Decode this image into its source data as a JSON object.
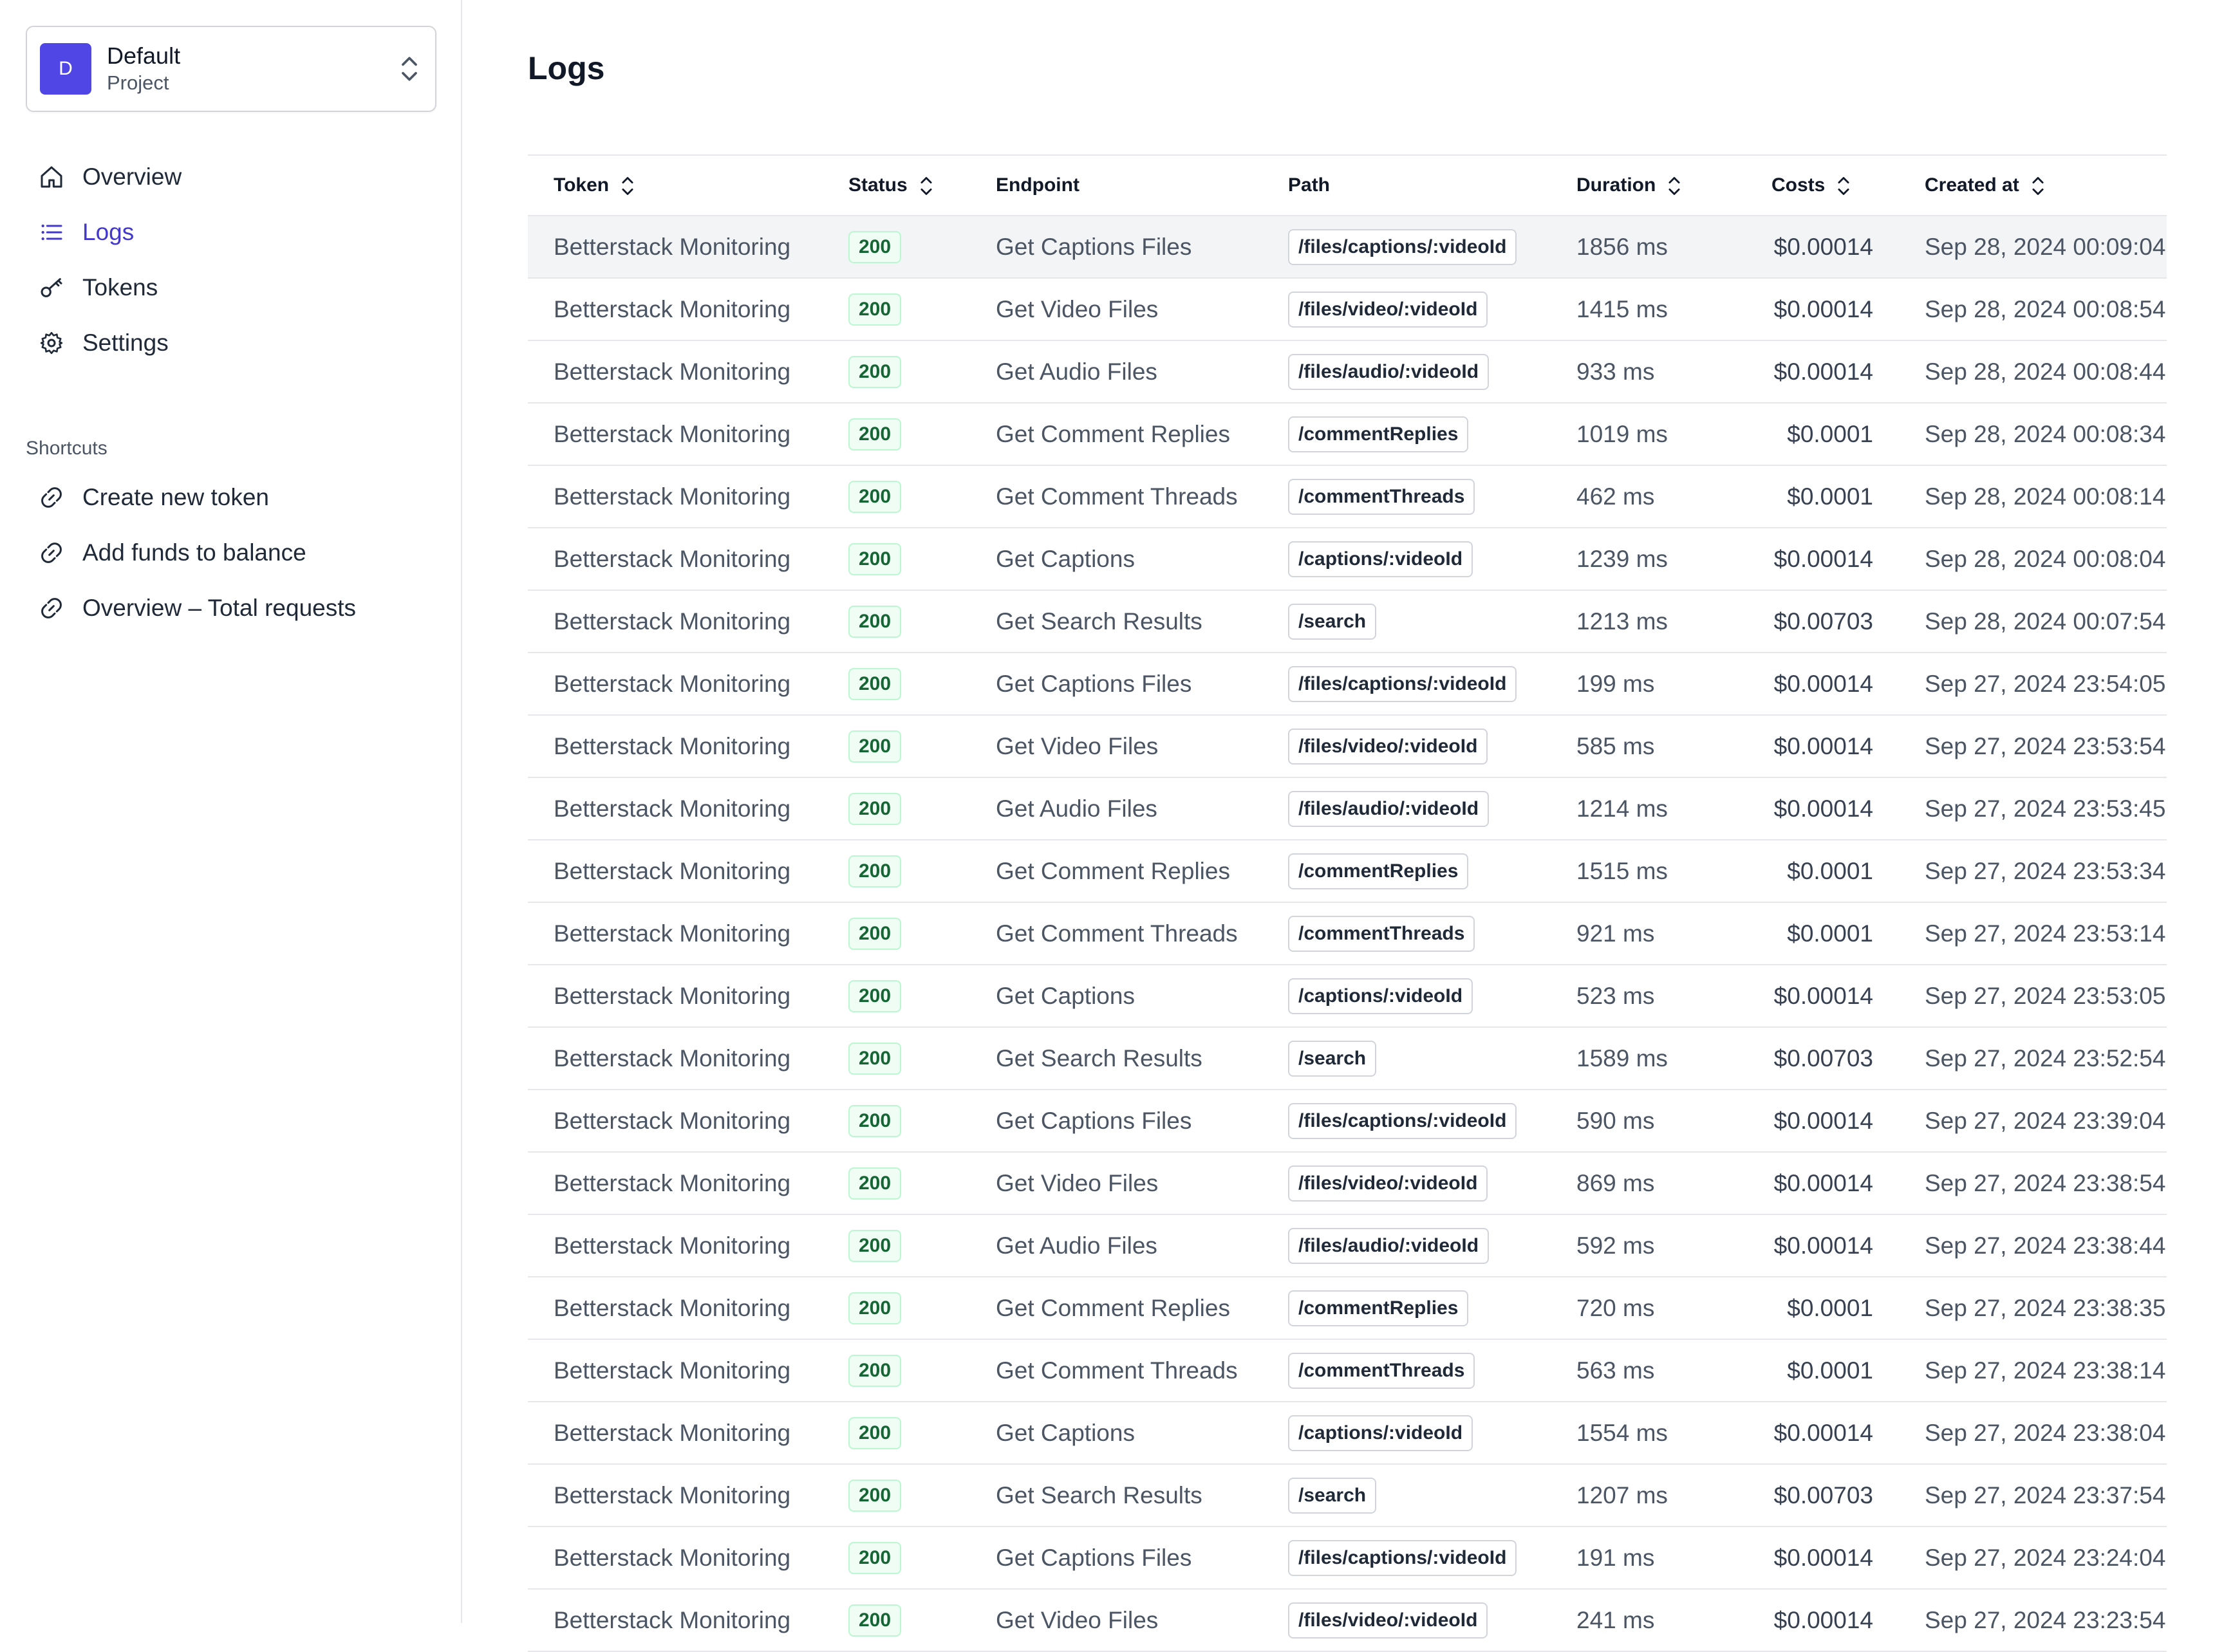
{
  "project": {
    "avatar_letter": "D",
    "name": "Default",
    "subtitle": "Project"
  },
  "nav": {
    "items": [
      {
        "label": "Overview",
        "icon": "home-icon",
        "active": false
      },
      {
        "label": "Logs",
        "icon": "list-icon",
        "active": true
      },
      {
        "label": "Tokens",
        "icon": "key-icon",
        "active": false
      },
      {
        "label": "Settings",
        "icon": "gear-icon",
        "active": false
      }
    ]
  },
  "shortcuts": {
    "title": "Shortcuts",
    "items": [
      {
        "label": "Create new token",
        "icon": "link-icon"
      },
      {
        "label": "Add funds to balance",
        "icon": "link-icon"
      },
      {
        "label": "Overview – Total requests",
        "icon": "link-icon"
      }
    ]
  },
  "page": {
    "title": "Logs"
  },
  "table": {
    "columns": [
      {
        "label": "Token",
        "sortable": true
      },
      {
        "label": "Status",
        "sortable": true
      },
      {
        "label": "Endpoint",
        "sortable": false
      },
      {
        "label": "Path",
        "sortable": false
      },
      {
        "label": "Duration",
        "sortable": true
      },
      {
        "label": "Costs",
        "sortable": true
      },
      {
        "label": "Created at",
        "sortable": true
      }
    ],
    "rows": [
      {
        "token": "Betterstack Monitoring",
        "status": "200",
        "endpoint": "Get Captions Files",
        "path": "/files/captions/:videoId",
        "duration": "1856 ms",
        "costs": "$0.00014",
        "created_at": "Sep 28, 2024 00:09:04"
      },
      {
        "token": "Betterstack Monitoring",
        "status": "200",
        "endpoint": "Get Video Files",
        "path": "/files/video/:videoId",
        "duration": "1415 ms",
        "costs": "$0.00014",
        "created_at": "Sep 28, 2024 00:08:54"
      },
      {
        "token": "Betterstack Monitoring",
        "status": "200",
        "endpoint": "Get Audio Files",
        "path": "/files/audio/:videoId",
        "duration": "933 ms",
        "costs": "$0.00014",
        "created_at": "Sep 28, 2024 00:08:44"
      },
      {
        "token": "Betterstack Monitoring",
        "status": "200",
        "endpoint": "Get Comment Replies",
        "path": "/commentReplies",
        "duration": "1019 ms",
        "costs": "$0.0001",
        "created_at": "Sep 28, 2024 00:08:34"
      },
      {
        "token": "Betterstack Monitoring",
        "status": "200",
        "endpoint": "Get Comment Threads",
        "path": "/commentThreads",
        "duration": "462 ms",
        "costs": "$0.0001",
        "created_at": "Sep 28, 2024 00:08:14"
      },
      {
        "token": "Betterstack Monitoring",
        "status": "200",
        "endpoint": "Get Captions",
        "path": "/captions/:videoId",
        "duration": "1239 ms",
        "costs": "$0.00014",
        "created_at": "Sep 28, 2024 00:08:04"
      },
      {
        "token": "Betterstack Monitoring",
        "status": "200",
        "endpoint": "Get Search Results",
        "path": "/search",
        "duration": "1213 ms",
        "costs": "$0.00703",
        "created_at": "Sep 28, 2024 00:07:54"
      },
      {
        "token": "Betterstack Monitoring",
        "status": "200",
        "endpoint": "Get Captions Files",
        "path": "/files/captions/:videoId",
        "duration": "199 ms",
        "costs": "$0.00014",
        "created_at": "Sep 27, 2024 23:54:05"
      },
      {
        "token": "Betterstack Monitoring",
        "status": "200",
        "endpoint": "Get Video Files",
        "path": "/files/video/:videoId",
        "duration": "585 ms",
        "costs": "$0.00014",
        "created_at": "Sep 27, 2024 23:53:54"
      },
      {
        "token": "Betterstack Monitoring",
        "status": "200",
        "endpoint": "Get Audio Files",
        "path": "/files/audio/:videoId",
        "duration": "1214 ms",
        "costs": "$0.00014",
        "created_at": "Sep 27, 2024 23:53:45"
      },
      {
        "token": "Betterstack Monitoring",
        "status": "200",
        "endpoint": "Get Comment Replies",
        "path": "/commentReplies",
        "duration": "1515 ms",
        "costs": "$0.0001",
        "created_at": "Sep 27, 2024 23:53:34"
      },
      {
        "token": "Betterstack Monitoring",
        "status": "200",
        "endpoint": "Get Comment Threads",
        "path": "/commentThreads",
        "duration": "921 ms",
        "costs": "$0.0001",
        "created_at": "Sep 27, 2024 23:53:14"
      },
      {
        "token": "Betterstack Monitoring",
        "status": "200",
        "endpoint": "Get Captions",
        "path": "/captions/:videoId",
        "duration": "523 ms",
        "costs": "$0.00014",
        "created_at": "Sep 27, 2024 23:53:05"
      },
      {
        "token": "Betterstack Monitoring",
        "status": "200",
        "endpoint": "Get Search Results",
        "path": "/search",
        "duration": "1589 ms",
        "costs": "$0.00703",
        "created_at": "Sep 27, 2024 23:52:54"
      },
      {
        "token": "Betterstack Monitoring",
        "status": "200",
        "endpoint": "Get Captions Files",
        "path": "/files/captions/:videoId",
        "duration": "590 ms",
        "costs": "$0.00014",
        "created_at": "Sep 27, 2024 23:39:04"
      },
      {
        "token": "Betterstack Monitoring",
        "status": "200",
        "endpoint": "Get Video Files",
        "path": "/files/video/:videoId",
        "duration": "869 ms",
        "costs": "$0.00014",
        "created_at": "Sep 27, 2024 23:38:54"
      },
      {
        "token": "Betterstack Monitoring",
        "status": "200",
        "endpoint": "Get Audio Files",
        "path": "/files/audio/:videoId",
        "duration": "592 ms",
        "costs": "$0.00014",
        "created_at": "Sep 27, 2024 23:38:44"
      },
      {
        "token": "Betterstack Monitoring",
        "status": "200",
        "endpoint": "Get Comment Replies",
        "path": "/commentReplies",
        "duration": "720 ms",
        "costs": "$0.0001",
        "created_at": "Sep 27, 2024 23:38:35"
      },
      {
        "token": "Betterstack Monitoring",
        "status": "200",
        "endpoint": "Get Comment Threads",
        "path": "/commentThreads",
        "duration": "563 ms",
        "costs": "$0.0001",
        "created_at": "Sep 27, 2024 23:38:14"
      },
      {
        "token": "Betterstack Monitoring",
        "status": "200",
        "endpoint": "Get Captions",
        "path": "/captions/:videoId",
        "duration": "1554 ms",
        "costs": "$0.00014",
        "created_at": "Sep 27, 2024 23:38:04"
      },
      {
        "token": "Betterstack Monitoring",
        "status": "200",
        "endpoint": "Get Search Results",
        "path": "/search",
        "duration": "1207 ms",
        "costs": "$0.00703",
        "created_at": "Sep 27, 2024 23:37:54"
      },
      {
        "token": "Betterstack Monitoring",
        "status": "200",
        "endpoint": "Get Captions Files",
        "path": "/files/captions/:videoId",
        "duration": "191 ms",
        "costs": "$0.00014",
        "created_at": "Sep 27, 2024 23:24:04"
      },
      {
        "token": "Betterstack Monitoring",
        "status": "200",
        "endpoint": "Get Video Files",
        "path": "/files/video/:videoId",
        "duration": "241 ms",
        "costs": "$0.00014",
        "created_at": "Sep 27, 2024 23:23:54"
      }
    ]
  },
  "colors": {
    "accent": "#4f46e5",
    "active_nav": "#4338ca",
    "status_ok_text": "#166534",
    "status_ok_bg": "#f0fdf4"
  }
}
